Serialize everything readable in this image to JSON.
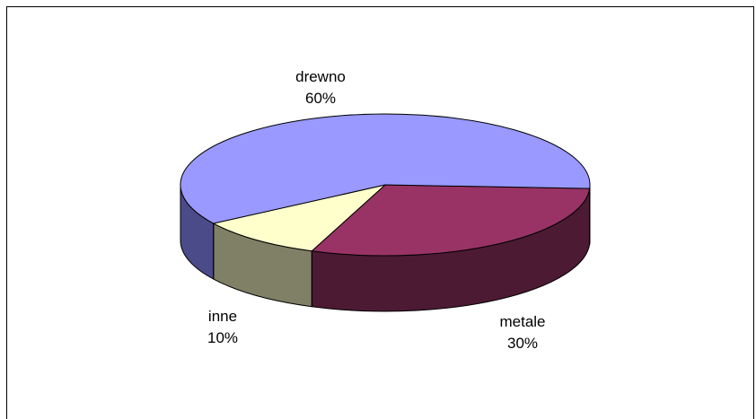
{
  "chart_data": {
    "type": "pie",
    "style": "3d",
    "legend": "none",
    "slices": [
      {
        "label": "drewno",
        "value": 60,
        "percent_label": "60%",
        "top_color": "#9999FF",
        "side_color": "#4B4B8A"
      },
      {
        "label": "metale",
        "value": 30,
        "percent_label": "30%",
        "top_color": "#993366",
        "side_color": "#4C1A33"
      },
      {
        "label": "inne",
        "value": 10,
        "percent_label": "10%",
        "top_color": "#FFFFCC",
        "side_color": "#808066"
      }
    ]
  }
}
